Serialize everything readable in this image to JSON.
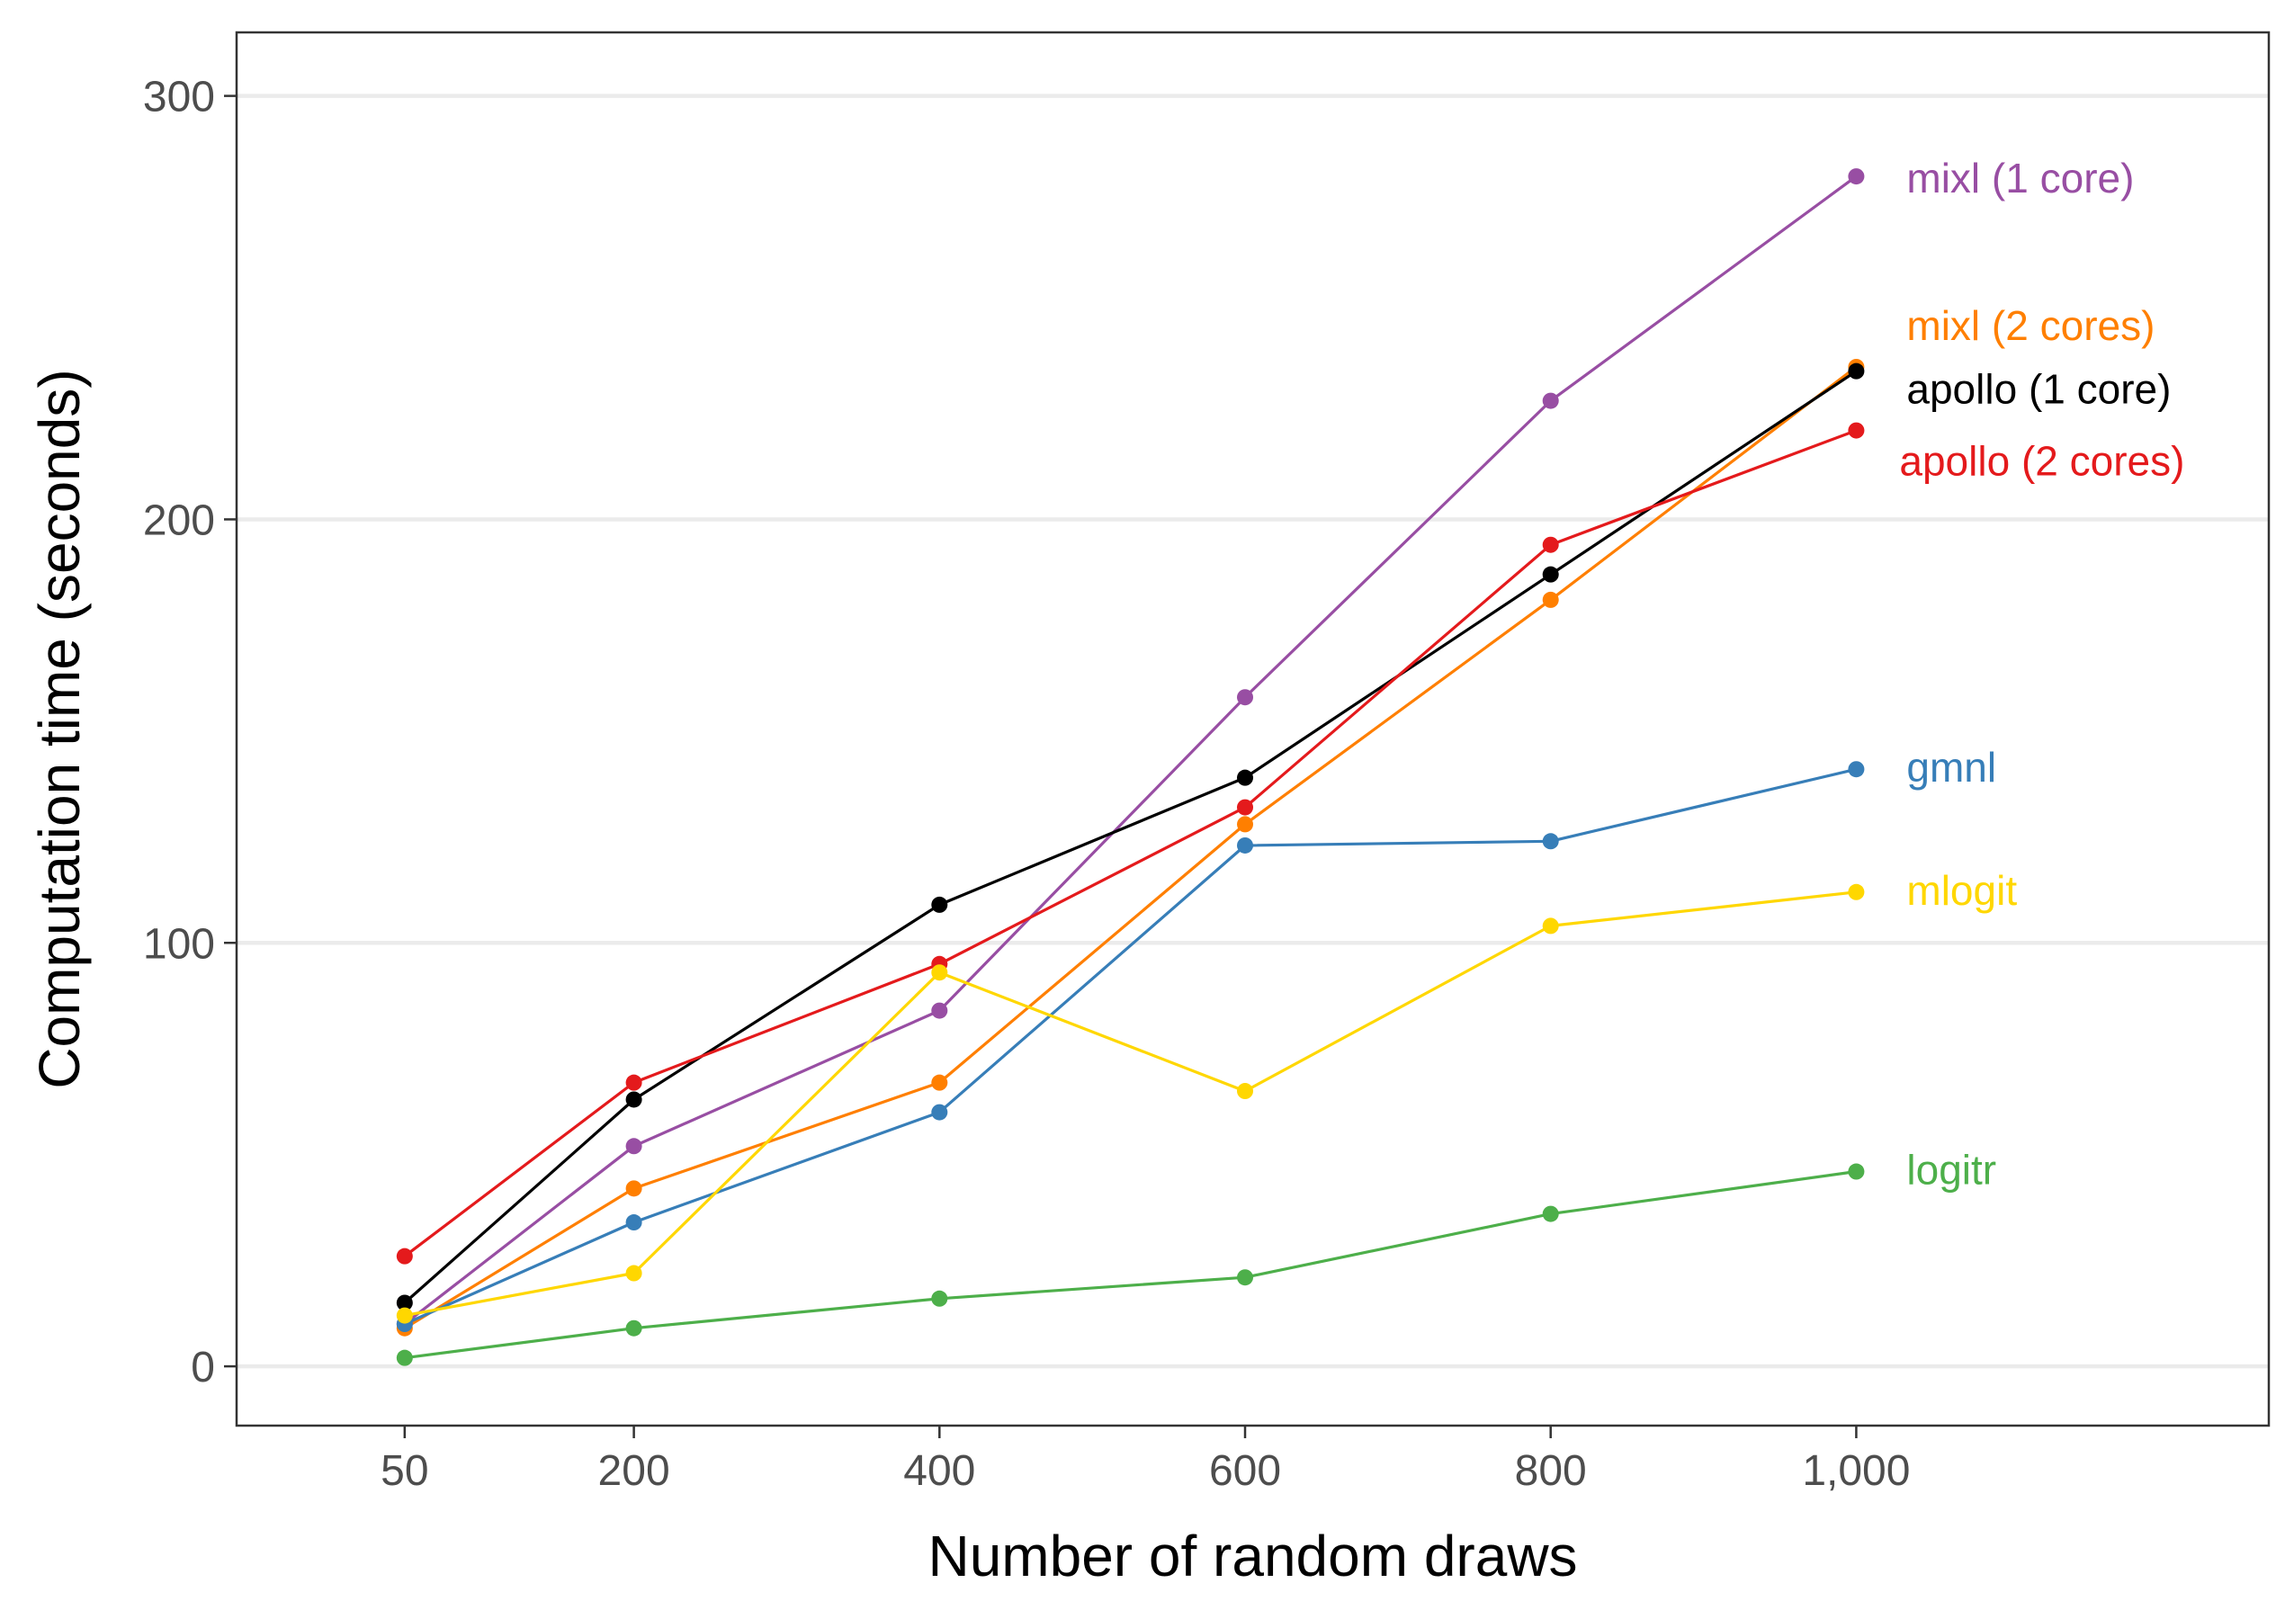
{
  "chart_data": {
    "type": "line",
    "title": "",
    "xlabel": "Number of random draws",
    "ylabel": "Computation time (seconds)",
    "x": [
      50,
      200,
      400,
      600,
      800,
      1000
    ],
    "x_tick_labels": [
      "50",
      "200",
      "400",
      "600",
      "800",
      "1,000"
    ],
    "xlim": [
      -60,
      1270
    ],
    "ylim": [
      -14,
      315
    ],
    "y_ticks": [
      0,
      100,
      200,
      300
    ],
    "y_tick_labels": [
      "0",
      "100",
      "200",
      "300"
    ],
    "grid": "horizontal major",
    "legend": "direct labels at right end of lines",
    "series": [
      {
        "name": "mixl (1 core)",
        "color": "#984ea3",
        "values": [
          10,
          52,
          84,
          158,
          228,
          281
        ]
      },
      {
        "name": "mixl (2 cores)",
        "color": "#ff7f00",
        "values": [
          9,
          42,
          67,
          128,
          181,
          236
        ]
      },
      {
        "name": "apollo (1 core)",
        "color": "#000000",
        "values": [
          15,
          63,
          109,
          139,
          187,
          235
        ]
      },
      {
        "name": "apollo (2 cores)",
        "color": "#e41a1c",
        "values": [
          26,
          67,
          95,
          132,
          194,
          221
        ]
      },
      {
        "name": "gmnl",
        "color": "#377eb8",
        "values": [
          10,
          34,
          60,
          123,
          124,
          141
        ]
      },
      {
        "name": "mlogit",
        "color": "#ffd700",
        "values": [
          12,
          22,
          93,
          65,
          104,
          112
        ]
      },
      {
        "name": "logitr",
        "color": "#4daf4a",
        "values": [
          2,
          9,
          16,
          21,
          36,
          46
        ]
      }
    ]
  }
}
